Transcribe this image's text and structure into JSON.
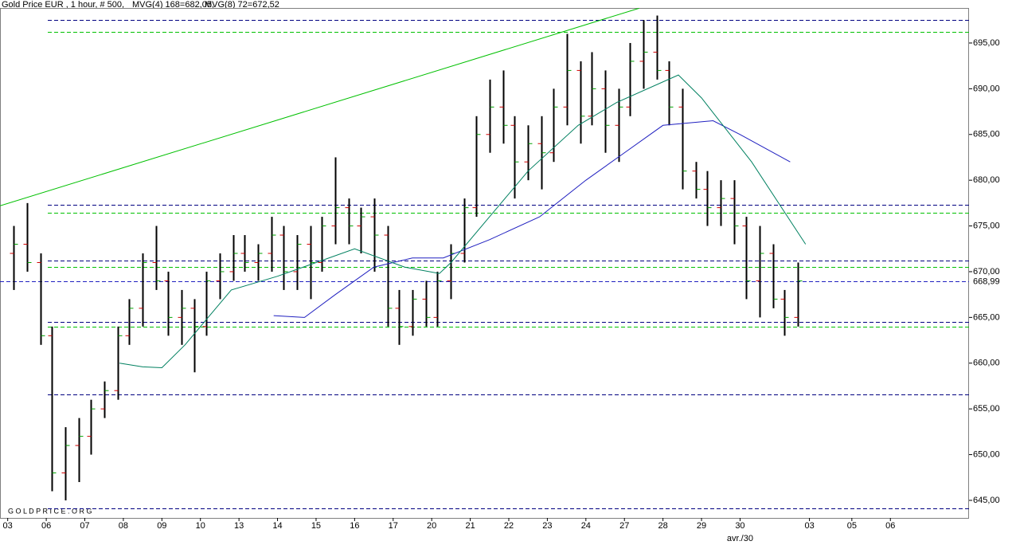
{
  "chart_data": {
    "type": "ohlc",
    "title": "Gold Price EUR , 1 hour, # 500,",
    "watermark": "G O L D P R I C E . O R G",
    "xlabel": "avr./30",
    "xlim": [
      -0.2,
      24.94
    ],
    "ylim": [
      643.08,
      698.83
    ],
    "xticks": [
      {
        "value": 0,
        "label": "03"
      },
      {
        "value": 1,
        "label": "06"
      },
      {
        "value": 2,
        "label": "07"
      },
      {
        "value": 3,
        "label": "08"
      },
      {
        "value": 4,
        "label": "09"
      },
      {
        "value": 5,
        "label": "10"
      },
      {
        "value": 6,
        "label": "13"
      },
      {
        "value": 7,
        "label": "14"
      },
      {
        "value": 8,
        "label": "15"
      },
      {
        "value": 9,
        "label": "16"
      },
      {
        "value": 10,
        "label": "17"
      },
      {
        "value": 11,
        "label": "20"
      },
      {
        "value": 12,
        "label": "21"
      },
      {
        "value": 13,
        "label": "22"
      },
      {
        "value": 14,
        "label": "23"
      },
      {
        "value": 15,
        "label": "24"
      },
      {
        "value": 16,
        "label": "27"
      },
      {
        "value": 17,
        "label": "28"
      },
      {
        "value": 18,
        "label": "29"
      },
      {
        "value": 19,
        "label": "30"
      },
      {
        "value": 20.8,
        "label": "03"
      },
      {
        "value": 21.9,
        "label": "05"
      },
      {
        "value": 22.9,
        "label": "06"
      }
    ],
    "yticks": [
      {
        "value": 645,
        "label": "645,00"
      },
      {
        "value": 650,
        "label": "650,00"
      },
      {
        "value": 655,
        "label": "655,00"
      },
      {
        "value": 660,
        "label": "660,00"
      },
      {
        "value": 665,
        "label": "665,00"
      },
      {
        "value": 670,
        "label": "670,00"
      },
      {
        "value": 675,
        "label": "675,00"
      },
      {
        "value": 680,
        "label": "680,00"
      },
      {
        "value": 685,
        "label": "685,00"
      },
      {
        "value": 690,
        "label": "690,00"
      },
      {
        "value": 695,
        "label": "695,00"
      }
    ],
    "up_color": "#00a000",
    "down_color": "#d00000",
    "bar_color": "#000000",
    "x": [
      0.15,
      0.5,
      0.85,
      1.15,
      1.5,
      1.85,
      2.15,
      2.5,
      2.85,
      3.15,
      3.5,
      3.85,
      4.15,
      4.5,
      4.85,
      5.15,
      5.5,
      5.85,
      6.15,
      6.5,
      6.85,
      7.15,
      7.5,
      7.85,
      8.15,
      8.5,
      8.85,
      9.15,
      9.5,
      9.85,
      10.15,
      10.5,
      10.85,
      11.15,
      11.5,
      11.85,
      12.15,
      12.5,
      12.85,
      13.15,
      13.5,
      13.85,
      14.15,
      14.5,
      14.85,
      15.15,
      15.5,
      15.85,
      16.15,
      16.5,
      16.85,
      17.15,
      17.5,
      17.85,
      18.15,
      18.5,
      18.85,
      19.15,
      19.5,
      19.85,
      20.15,
      20.5
    ],
    "open": [
      672,
      673,
      671,
      663,
      648,
      651,
      652,
      655,
      657,
      663,
      666,
      671,
      669,
      665,
      666,
      664,
      669,
      670,
      672,
      671,
      672,
      674,
      670,
      673,
      671,
      675,
      677,
      675,
      676,
      674,
      666,
      664,
      667,
      665,
      669,
      672,
      677,
      685,
      688,
      686,
      682,
      684,
      683,
      688,
      692,
      687,
      690,
      686,
      688,
      693,
      694,
      692,
      688,
      681,
      679,
      677,
      678,
      675,
      669,
      672,
      667,
      665
    ],
    "high": [
      675,
      677.5,
      672,
      664,
      653,
      654,
      656,
      658,
      664,
      667,
      672,
      675,
      670,
      668,
      667,
      670,
      672,
      674,
      674,
      673,
      676,
      675,
      674,
      675,
      676,
      682.5,
      678,
      677,
      678,
      675,
      668,
      668,
      669,
      670,
      673,
      678,
      687,
      691,
      692,
      687,
      686,
      687,
      690,
      696,
      693,
      694,
      692,
      690,
      695,
      697.5,
      698,
      693,
      690,
      682,
      681,
      680,
      680,
      676,
      675,
      673,
      668,
      671
    ],
    "low": [
      668,
      670,
      662,
      646,
      645,
      647,
      650,
      654,
      656,
      662,
      664,
      668,
      663,
      662,
      659,
      663,
      667,
      669,
      670,
      669,
      670,
      668,
      668,
      667,
      670,
      673,
      673,
      672,
      670,
      664,
      662,
      663,
      664,
      664,
      667,
      671,
      676,
      683,
      684,
      678,
      680,
      679,
      682,
      686,
      684,
      686,
      683,
      682,
      687,
      690,
      691,
      686,
      679,
      678,
      675,
      675,
      673,
      667,
      665,
      666,
      663,
      664
    ],
    "close": [
      673,
      671,
      663,
      648,
      651,
      652,
      655,
      657,
      663,
      666,
      671,
      669,
      665,
      666,
      664,
      669,
      670,
      672,
      671,
      672,
      674,
      670,
      673,
      671,
      675,
      677,
      675,
      676,
      674,
      666,
      664,
      667,
      665,
      669,
      672,
      677,
      685,
      688,
      686,
      682,
      684,
      683,
      688,
      692,
      687,
      690,
      686,
      688,
      693,
      694,
      692,
      688,
      681,
      679,
      677,
      678,
      675,
      669,
      672,
      667,
      665,
      668.99
    ],
    "series": [
      {
        "name": "MVG(4) 168=682,05,",
        "color": "#2020c0",
        "x": [
          6.9,
          7.7,
          8.5,
          9.5,
          10.5,
          11.3,
          12.5,
          13.8,
          15,
          16,
          17,
          18.3,
          19,
          20.3
        ],
        "values": [
          665.2,
          665,
          667.5,
          670.5,
          671.5,
          671.5,
          673.5,
          676,
          680,
          683,
          686,
          686.5,
          685,
          682
        ]
      },
      {
        "name": "MVG(8) 72=672,52",
        "color": "#008060",
        "x": [
          2.9,
          3.5,
          4,
          4.6,
          5.8,
          7,
          8,
          9,
          10.3,
          11.2,
          11.5,
          12.5,
          13.5,
          14.8,
          15.8,
          17.4,
          18,
          19.3,
          20.7
        ],
        "values": [
          660,
          659.6,
          659.5,
          662,
          668,
          669.5,
          671,
          672.5,
          670.5,
          669.8,
          671,
          676,
          681,
          686,
          688.5,
          691.5,
          689,
          682,
          673
        ]
      }
    ],
    "levels": [
      {
        "value": 697.5,
        "color": "#000080"
      },
      {
        "value": 677.3,
        "color": "#000080"
      },
      {
        "value": 671.2,
        "color": "#000080"
      },
      {
        "value": 664.5,
        "color": "#000080"
      },
      {
        "value": 656.6,
        "color": "#000080"
      },
      {
        "value": 644.1,
        "color": "#000080"
      },
      {
        "value": 696.2,
        "color": "#00c000"
      },
      {
        "value": 676.4,
        "color": "#00c000"
      },
      {
        "value": 670.5,
        "color": "#00c000"
      },
      {
        "value": 664,
        "color": "#00c000"
      }
    ],
    "trendline": {
      "x": [
        -0.2,
        16.38
      ],
      "values": [
        677.2,
        698.8
      ],
      "color": "#00c000"
    },
    "last_price": {
      "value": 668.99,
      "label": "668,99",
      "color": "#2020c0"
    }
  }
}
